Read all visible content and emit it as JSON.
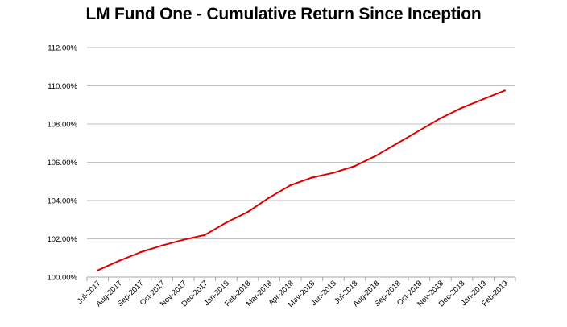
{
  "chart_data": {
    "type": "line",
    "title": "LM Fund One -  Cumulative Return Since Inception",
    "xlabel": "",
    "ylabel": "",
    "categories": [
      "Jul-2017",
      "Aug-2017",
      "Sep-2017",
      "Oct-2017",
      "Nov-2017",
      "Dec-2017",
      "Jan-2018",
      "Feb-2018",
      "Mar-2018",
      "Apr-2018",
      "May-2018",
      "Jun-2018",
      "Jul-2018",
      "Aug-2018",
      "Sep-2018",
      "Oct-2018",
      "Nov-2018",
      "Dec-2018",
      "Jan-2019",
      "Feb-2019"
    ],
    "series": [
      {
        "values": [
          100.35,
          100.85,
          101.3,
          101.65,
          101.95,
          102.2,
          102.85,
          103.4,
          104.15,
          104.8,
          105.2,
          105.45,
          105.8,
          106.35,
          107.0,
          107.65,
          108.3,
          108.85,
          109.3,
          109.75
        ],
        "color": "#e00000"
      }
    ],
    "ylim": [
      100,
      112
    ],
    "yticks": [
      "100.00%",
      "102.00%",
      "104.00%",
      "106.00%",
      "108.00%",
      "110.00%",
      "112.00%"
    ],
    "grid": true,
    "legend": "none"
  }
}
